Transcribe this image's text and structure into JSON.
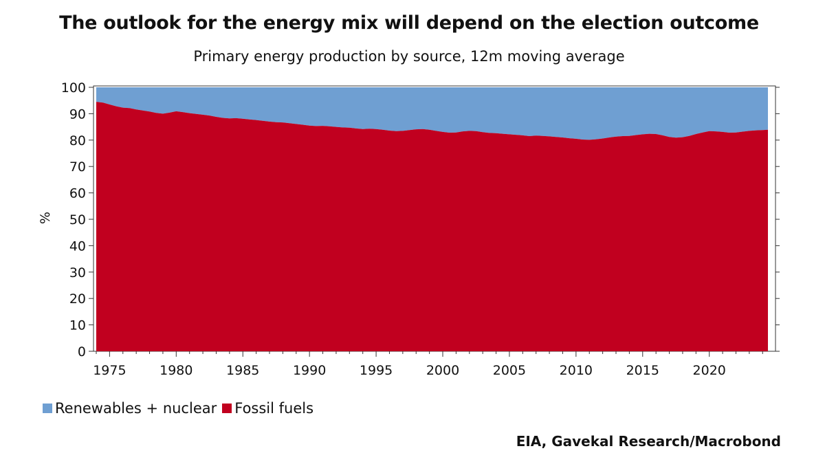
{
  "title": "The outlook for the energy mix will depend on the election outcome",
  "subtitle": "Primary energy production by source, 12m moving average",
  "source": "EIA, Gavekal Research/Macrobond",
  "colors": {
    "renewables": "#6f9fd2",
    "fossil": "#c1001f"
  },
  "chart_data": {
    "type": "area",
    "stacked": true,
    "title": "The outlook for the energy mix will depend on the election outcome",
    "subtitle": "Primary energy production by source, 12m moving average",
    "xlabel": "",
    "ylabel": "%",
    "xlim": [
      1974,
      2024.4
    ],
    "ylim": [
      0,
      100
    ],
    "x_ticks": [
      1975,
      1980,
      1985,
      1990,
      1995,
      2000,
      2005,
      2010,
      2015,
      2020
    ],
    "y_ticks": [
      0,
      10,
      20,
      30,
      40,
      50,
      60,
      70,
      80,
      90,
      100
    ],
    "legend_position": "bottom-left",
    "series": [
      {
        "name": "Renewables + nuclear",
        "color": "#6f9fd2",
        "note": "fills the remainder up to 100%"
      },
      {
        "name": "Fossil fuels",
        "color": "#c1001f",
        "points": [
          [
            1974.0,
            94.5
          ],
          [
            1974.5,
            94.2
          ],
          [
            1975.0,
            93.5
          ],
          [
            1975.5,
            92.8
          ],
          [
            1976.0,
            92.3
          ],
          [
            1976.5,
            92.1
          ],
          [
            1977.0,
            91.6
          ],
          [
            1977.5,
            91.2
          ],
          [
            1978.0,
            90.8
          ],
          [
            1978.5,
            90.3
          ],
          [
            1979.0,
            90.0
          ],
          [
            1979.5,
            90.4
          ],
          [
            1980.0,
            90.9
          ],
          [
            1980.5,
            90.6
          ],
          [
            1981.0,
            90.2
          ],
          [
            1981.5,
            89.9
          ],
          [
            1982.0,
            89.6
          ],
          [
            1982.5,
            89.3
          ],
          [
            1983.0,
            88.8
          ],
          [
            1983.5,
            88.4
          ],
          [
            1984.0,
            88.2
          ],
          [
            1984.5,
            88.3
          ],
          [
            1985.0,
            88.1
          ],
          [
            1985.5,
            87.8
          ],
          [
            1986.0,
            87.6
          ],
          [
            1986.5,
            87.3
          ],
          [
            1987.0,
            87.0
          ],
          [
            1987.5,
            86.8
          ],
          [
            1988.0,
            86.7
          ],
          [
            1988.5,
            86.4
          ],
          [
            1989.0,
            86.1
          ],
          [
            1989.5,
            85.8
          ],
          [
            1990.0,
            85.5
          ],
          [
            1990.5,
            85.3
          ],
          [
            1991.0,
            85.4
          ],
          [
            1991.5,
            85.2
          ],
          [
            1992.0,
            85.0
          ],
          [
            1992.5,
            84.8
          ],
          [
            1993.0,
            84.7
          ],
          [
            1993.5,
            84.4
          ],
          [
            1994.0,
            84.2
          ],
          [
            1994.5,
            84.3
          ],
          [
            1995.0,
            84.2
          ],
          [
            1995.5,
            83.9
          ],
          [
            1996.0,
            83.6
          ],
          [
            1996.5,
            83.4
          ],
          [
            1997.0,
            83.5
          ],
          [
            1997.5,
            83.8
          ],
          [
            1998.0,
            84.1
          ],
          [
            1998.5,
            84.2
          ],
          [
            1999.0,
            83.9
          ],
          [
            1999.5,
            83.5
          ],
          [
            2000.0,
            83.1
          ],
          [
            2000.5,
            82.8
          ],
          [
            2001.0,
            82.9
          ],
          [
            2001.5,
            83.3
          ],
          [
            2002.0,
            83.5
          ],
          [
            2002.5,
            83.4
          ],
          [
            2003.0,
            83.0
          ],
          [
            2003.5,
            82.7
          ],
          [
            2004.0,
            82.6
          ],
          [
            2004.5,
            82.4
          ],
          [
            2005.0,
            82.2
          ],
          [
            2005.5,
            82.0
          ],
          [
            2006.0,
            81.8
          ],
          [
            2006.5,
            81.5
          ],
          [
            2007.0,
            81.7
          ],
          [
            2007.5,
            81.6
          ],
          [
            2008.0,
            81.4
          ],
          [
            2008.5,
            81.2
          ],
          [
            2009.0,
            81.0
          ],
          [
            2009.5,
            80.7
          ],
          [
            2010.0,
            80.5
          ],
          [
            2010.5,
            80.2
          ],
          [
            2011.0,
            80.1
          ],
          [
            2011.5,
            80.3
          ],
          [
            2012.0,
            80.6
          ],
          [
            2012.5,
            81.0
          ],
          [
            2013.0,
            81.3
          ],
          [
            2013.5,
            81.5
          ],
          [
            2014.0,
            81.6
          ],
          [
            2014.5,
            81.9
          ],
          [
            2015.0,
            82.2
          ],
          [
            2015.5,
            82.4
          ],
          [
            2016.0,
            82.3
          ],
          [
            2016.5,
            81.8
          ],
          [
            2017.0,
            81.2
          ],
          [
            2017.5,
            80.9
          ],
          [
            2018.0,
            81.1
          ],
          [
            2018.5,
            81.6
          ],
          [
            2019.0,
            82.3
          ],
          [
            2019.5,
            82.9
          ],
          [
            2020.0,
            83.4
          ],
          [
            2020.5,
            83.3
          ],
          [
            2021.0,
            83.1
          ],
          [
            2021.5,
            82.8
          ],
          [
            2022.0,
            82.9
          ],
          [
            2022.5,
            83.2
          ],
          [
            2023.0,
            83.5
          ],
          [
            2023.5,
            83.7
          ],
          [
            2024.0,
            83.8
          ],
          [
            2024.4,
            83.9
          ]
        ]
      }
    ]
  }
}
